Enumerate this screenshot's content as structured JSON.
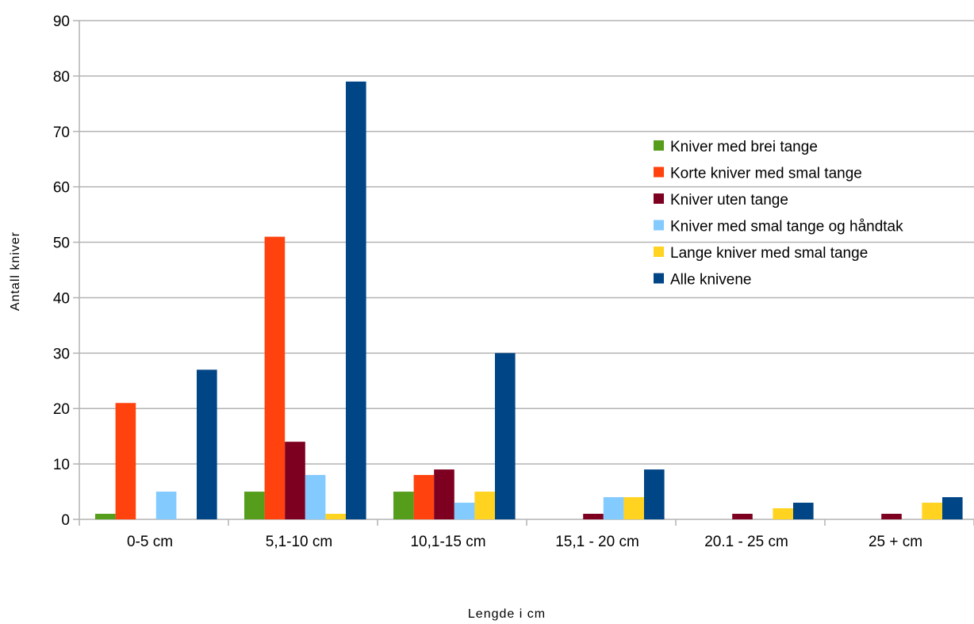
{
  "chart_data": {
    "type": "bar",
    "title": "",
    "xlabel": "Lengde i cm",
    "ylabel": "Antall kniver",
    "categories": [
      "0-5 cm",
      "5,1-10 cm",
      "10,1-15 cm",
      "15,1 - 20 cm",
      "20.1 - 25 cm",
      "25 + cm"
    ],
    "ylim": [
      0,
      90
    ],
    "y_ticks": [
      0,
      10,
      20,
      30,
      40,
      50,
      60,
      70,
      80,
      90
    ],
    "grid": true,
    "legend_position": "right",
    "series": [
      {
        "name": "Kniver med brei tange",
        "color": "#579D1C",
        "values": [
          1,
          5,
          5,
          0,
          0,
          0
        ]
      },
      {
        "name": "Korte kniver med smal tange",
        "color": "#FF420E",
        "values": [
          21,
          51,
          8,
          0,
          0,
          0
        ]
      },
      {
        "name": "Kniver uten tange",
        "color": "#7E0021",
        "values": [
          0,
          14,
          9,
          1,
          1,
          1
        ]
      },
      {
        "name": "Kniver med smal tange og håndtak",
        "color": "#83CAFF",
        "values": [
          5,
          8,
          3,
          4,
          0,
          0
        ]
      },
      {
        "name": "Lange kniver med smal tange",
        "color": "#FFD320",
        "values": [
          0,
          1,
          5,
          4,
          2,
          3
        ]
      },
      {
        "name": "Alle knivene",
        "color": "#004586",
        "values": [
          27,
          79,
          30,
          9,
          3,
          4
        ]
      }
    ]
  }
}
